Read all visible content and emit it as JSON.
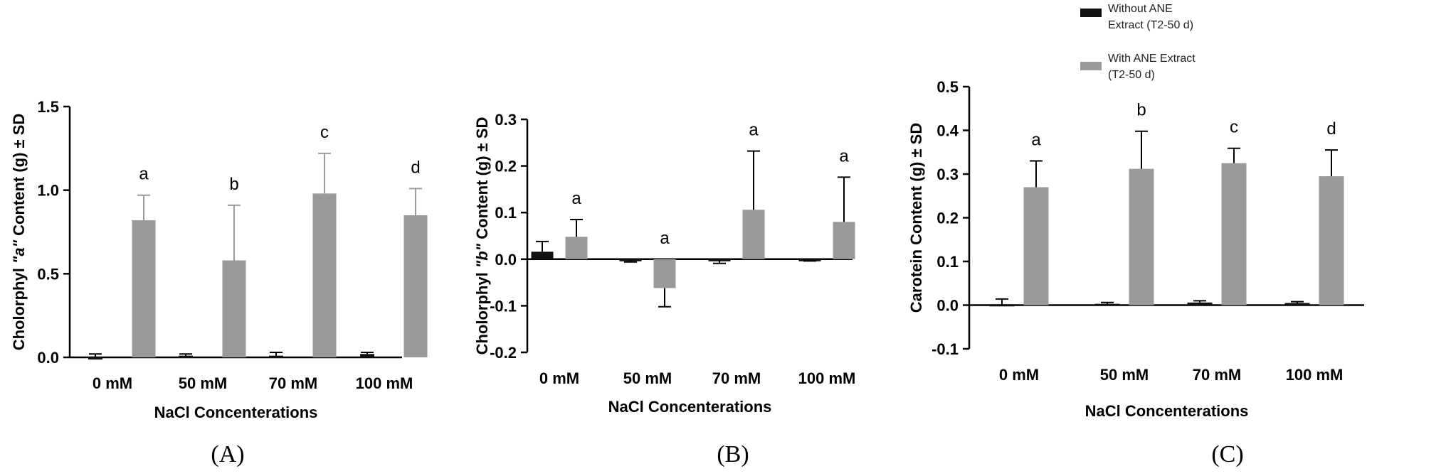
{
  "legend": {
    "items": [
      {
        "line1": "Without ANE",
        "line2": "Extract (T2-50 d)",
        "color": "#111111"
      },
      {
        "line1": "With ANE Extract",
        "line2": "(T2-50 d)",
        "color": "#9a9a9a"
      }
    ]
  },
  "chart_data": [
    {
      "type": "bar",
      "panel_label": "(A)",
      "categories": [
        "0 mM",
        "50 mM",
        "70 mM",
        "100 mM"
      ],
      "xlabel": "NaCl Concenterations",
      "ylabel_parts": [
        "Cholorphyl ",
        "\"a\"",
        " Content (g) ± SD"
      ],
      "ylim": [
        0,
        1.5
      ],
      "yticks": [
        "0.0",
        "0.5",
        "1.0",
        "1.5"
      ],
      "series": [
        {
          "name": "Without ANE Extract (T2-50 d)",
          "color": "#111111",
          "values": [
            0.0,
            0.01,
            0.01,
            0.02
          ],
          "errors": [
            0.02,
            0.01,
            0.02,
            0.01
          ]
        },
        {
          "name": "With ANE Extract (T2-50 d)",
          "color": "#9a9a9a",
          "values": [
            0.82,
            0.58,
            0.98,
            0.85
          ],
          "errors": [
            0.15,
            0.33,
            0.24,
            0.16
          ]
        }
      ],
      "significance": [
        "a",
        "b",
        "c",
        "d"
      ]
    },
    {
      "type": "bar",
      "panel_label": "(B)",
      "categories": [
        "0 mM",
        "50 mM",
        "70 mM",
        "100 mM"
      ],
      "xlabel": "NaCl Concenterations",
      "ylabel_parts": [
        "Cholorphyl ",
        "\"b\"",
        " Content (g) ± SD"
      ],
      "ylim": [
        -0.2,
        0.3
      ],
      "yticks": [
        "-0.2",
        "-0.1",
        "0.0",
        "0.1",
        "0.2",
        "0.3"
      ],
      "series": [
        {
          "name": "Without ANE Extract (T2-50 d)",
          "color": "#111111",
          "values": [
            0.016,
            -0.004,
            -0.002,
            -0.002
          ],
          "errors": [
            0.022,
            0.002,
            0.007,
            0.002
          ]
        },
        {
          "name": "With ANE Extract (T2-50 d)",
          "color": "#9a9a9a",
          "values": [
            0.048,
            -0.062,
            0.106,
            0.08
          ],
          "errors": [
            0.037,
            0.04,
            0.126,
            0.096
          ]
        }
      ],
      "significance": [
        "a",
        "a",
        "a",
        "a"
      ]
    },
    {
      "type": "bar",
      "panel_label": "(C)",
      "categories": [
        "0 mM",
        "50 mM",
        "70 mM",
        "100 mM"
      ],
      "xlabel": "NaCl Concenterations",
      "ylabel_parts": [
        "Carotein Content (g) ± SD"
      ],
      "ylim": [
        -0.1,
        0.5
      ],
      "yticks": [
        "-0.1",
        "0.0",
        "0.1",
        "0.2",
        "0.3",
        "0.4",
        "0.5"
      ],
      "series": [
        {
          "name": "Without ANE Extract (T2-50 d)",
          "color": "#111111",
          "values": [
            0.002,
            0.003,
            0.006,
            0.005
          ],
          "errors": [
            0.012,
            0.003,
            0.004,
            0.003
          ]
        },
        {
          "name": "With ANE Extract (T2-50 d)",
          "color": "#9a9a9a",
          "values": [
            0.27,
            0.312,
            0.325,
            0.295
          ],
          "errors": [
            0.06,
            0.086,
            0.034,
            0.06
          ]
        }
      ],
      "significance": [
        "a",
        "b",
        "c",
        "d"
      ]
    }
  ]
}
